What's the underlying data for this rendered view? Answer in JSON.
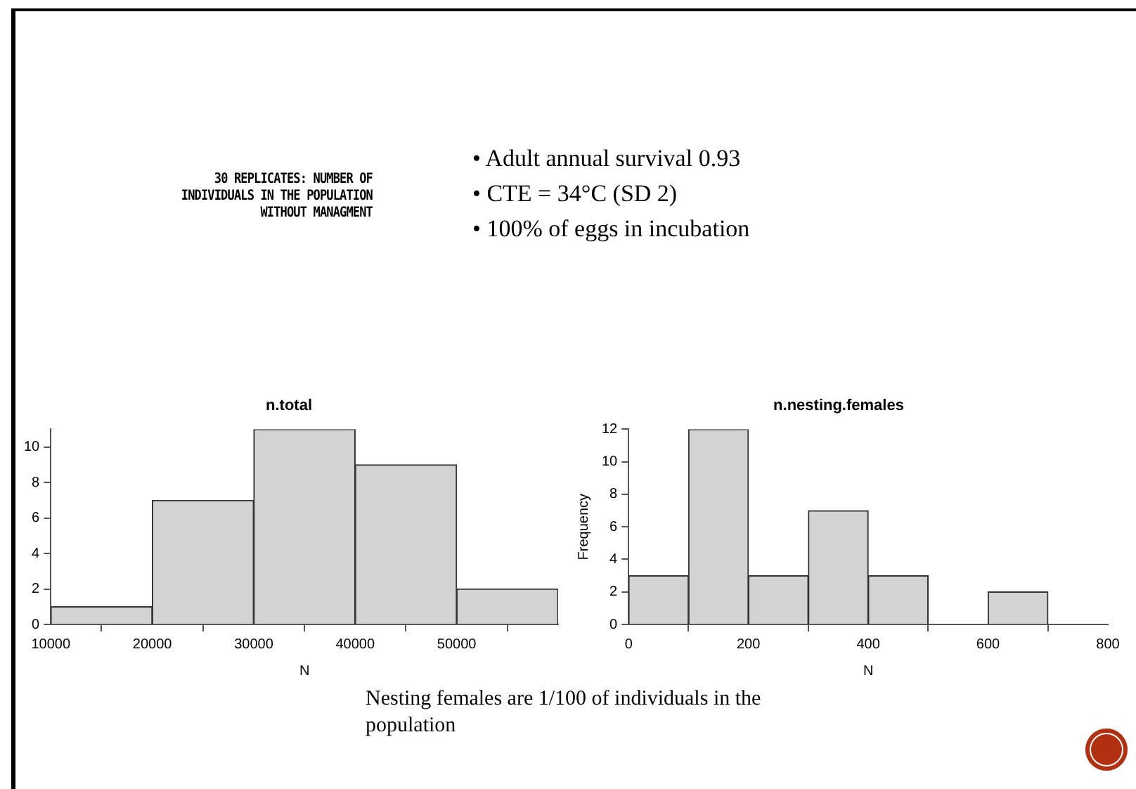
{
  "chart_data": [
    {
      "type": "histogram",
      "title": "n.total",
      "xlabel": "N",
      "bins": [
        10000,
        20000,
        30000,
        40000,
        50000,
        60000
      ],
      "values": [
        1,
        7,
        11,
        9,
        2
      ],
      "color": "#d3d3d3",
      "xlim": [
        10000,
        60000
      ],
      "xticks": [
        10000,
        20000,
        30000,
        40000,
        50000
      ],
      "ylim": [
        0,
        11
      ],
      "yticks": [
        0,
        2,
        4,
        6,
        8,
        10
      ],
      "grid": false,
      "annotations": [
        "30 REPLICATES: NUMBER OF INDIVIDUALS IN THE POPULATION WITHOUT MANAGMENT",
        "• Adult annual survival 0.93",
        "• CTE = 34°C (SD 2)",
        "• 100% of eggs in incubation",
        "Nesting females are 1/100 of individuals in the population"
      ]
    },
    {
      "type": "histogram",
      "title": "n.nesting.females",
      "xlabel": "N",
      "ylabel": "Frequency",
      "bins": [
        0,
        100,
        200,
        300,
        400,
        500,
        600,
        700
      ],
      "values": [
        3,
        12,
        3,
        7,
        3,
        0,
        2
      ],
      "color": "#d3d3d3",
      "xlim": [
        0,
        800
      ],
      "xticks": [
        0,
        200,
        400,
        600,
        800
      ],
      "ylim": [
        0,
        12
      ],
      "yticks": [
        0,
        2,
        4,
        6,
        8,
        10,
        12
      ],
      "grid": false
    }
  ]
}
